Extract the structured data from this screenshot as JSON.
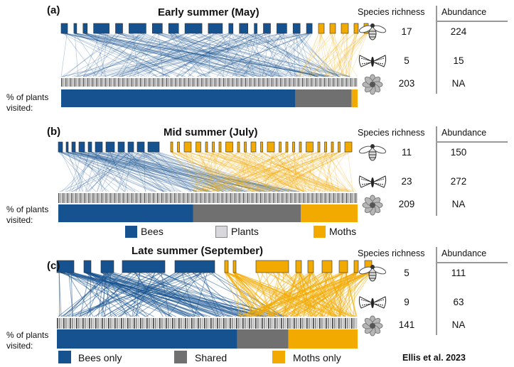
{
  "colors": {
    "bees": "#15528f",
    "shared": "#707070",
    "moths": "#f2a900",
    "plants_legend": "#d7d7dc"
  },
  "headers": {
    "richness": "Species richness",
    "abundance": "Abundance"
  },
  "percent_label_line1": "% of plants",
  "percent_label_line2": "visited:",
  "icons": {
    "bee": "bee-icon",
    "moth": "moth-icon",
    "flower": "flower-icon"
  },
  "panels": [
    {
      "label": "(a)",
      "title": "Early summer (May)",
      "bees_richness": "17",
      "bees_abundance": "224",
      "moths_richness": "5",
      "moths_abundance": "15",
      "plants_richness": "203",
      "plants_abundance": "NA",
      "visited_fraction": {
        "bees_only": 0.79,
        "shared": 0.19,
        "moths_only": 0.02
      }
    },
    {
      "label": "(b)",
      "title": "Mid summer (July)",
      "bees_richness": "11",
      "bees_abundance": "150",
      "moths_richness": "23",
      "moths_abundance": "272",
      "plants_richness": "209",
      "plants_abundance": "NA",
      "visited_fraction": {
        "bees_only": 0.45,
        "shared": 0.36,
        "moths_only": 0.19
      }
    },
    {
      "label": "(c)",
      "title": "Late summer (September)",
      "bees_richness": "5",
      "bees_abundance": "111",
      "moths_richness": "9",
      "moths_abundance": "63",
      "plants_richness": "141",
      "plants_abundance": "NA",
      "visited_fraction": {
        "bees_only": 0.6,
        "shared": 0.17,
        "moths_only": 0.23
      }
    }
  ],
  "legend_mid": {
    "bees": "Bees",
    "plants": "Plants",
    "moths": "Moths"
  },
  "legend_bottom": {
    "bees_only": "Bees only",
    "shared": "Shared",
    "moths_only": "Moths only"
  },
  "credit": "Ellis et al. 2023"
}
